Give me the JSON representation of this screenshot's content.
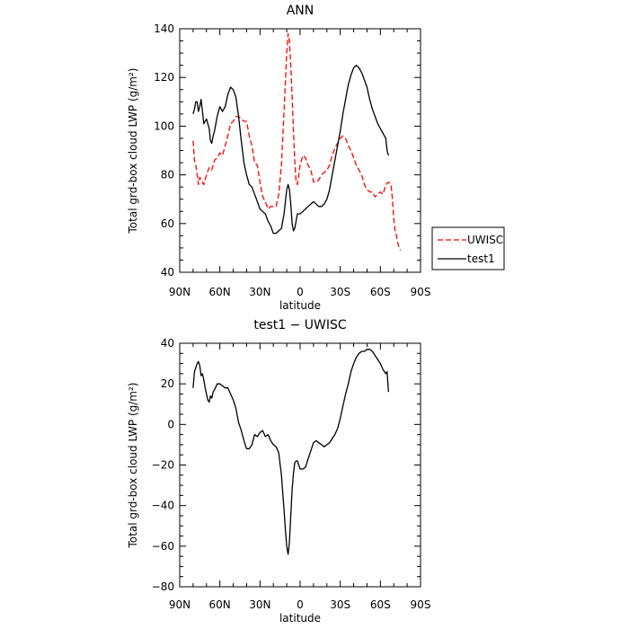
{
  "chart_data": [
    {
      "type": "line",
      "title": "ANN",
      "xlabel": "latitude",
      "ylabel": "Total grd-box cloud LWP (g/m²)",
      "xlim": [
        90,
        -90
      ],
      "ylim": [
        40,
        140
      ],
      "x_ticks": [
        90,
        60,
        30,
        0,
        -30,
        -60,
        -90
      ],
      "x_tick_labels": [
        "90N",
        "60N",
        "30N",
        "0",
        "30S",
        "60S",
        "90S"
      ],
      "y_ticks": [
        40,
        60,
        80,
        100,
        120,
        140
      ],
      "y_tick_labels": [
        "40",
        "60",
        "80",
        "100",
        "120",
        "140"
      ],
      "legend_position": "right",
      "series": [
        {
          "name": "UWISC",
          "color": "#ff0000",
          "dash": "dashed",
          "x": [
            80,
            79,
            78,
            77,
            76,
            75,
            74,
            73,
            72,
            70,
            68,
            66,
            64,
            62,
            60,
            58,
            56,
            54,
            52,
            50,
            48,
            46,
            44,
            42,
            40,
            38,
            36,
            34,
            32,
            30,
            28,
            26,
            24,
            22,
            20,
            18,
            16,
            14,
            12,
            11,
            10,
            9,
            8,
            7,
            6,
            5,
            4,
            3,
            2,
            1,
            0,
            -2,
            -4,
            -6,
            -8,
            -10,
            -12,
            -14,
            -16,
            -18,
            -20,
            -22,
            -24,
            -26,
            -28,
            -30,
            -32,
            -34,
            -36,
            -38,
            -40,
            -42,
            -44,
            -46,
            -48,
            -50,
            -52,
            -54,
            -56,
            -58,
            -60,
            -62,
            -64,
            -66,
            -68,
            -69,
            -70,
            -71,
            -72,
            -73,
            -74,
            -75
          ],
          "y": [
            94,
            86,
            84,
            80,
            76,
            79,
            78,
            77,
            76,
            80,
            83,
            82,
            86,
            87,
            89,
            88,
            92,
            96,
            101,
            102,
            104,
            104,
            103,
            102,
            102,
            96,
            92,
            85,
            84,
            77,
            71,
            69,
            66,
            67,
            67,
            67,
            72,
            84,
            106,
            118,
            130,
            138,
            135,
            125,
            112,
            98,
            86,
            77,
            76,
            80,
            84,
            88,
            87,
            84,
            82,
            77,
            77,
            78,
            80,
            81,
            82,
            84,
            88,
            91,
            93,
            95,
            96,
            95,
            92,
            90,
            87,
            84,
            82,
            80,
            76,
            74,
            73,
            73,
            71,
            72,
            73,
            72,
            76,
            77,
            76,
            70,
            62,
            57,
            55,
            52,
            50,
            49
          ]
        },
        {
          "name": "test1",
          "color": "#000000",
          "dash": "solid",
          "x": [
            80,
            79,
            78,
            77,
            76,
            75,
            74,
            73,
            72,
            70,
            68,
            67,
            66,
            65,
            64,
            62,
            60,
            58,
            56,
            54,
            52,
            50,
            48,
            46,
            44,
            42,
            40,
            38,
            36,
            34,
            32,
            30,
            28,
            26,
            24,
            22,
            20,
            18,
            16,
            14,
            12,
            11,
            10,
            9,
            8,
            7,
            6,
            5,
            4,
            3,
            2,
            1,
            0,
            -2,
            -4,
            -6,
            -8,
            -10,
            -12,
            -14,
            -16,
            -18,
            -20,
            -22,
            -24,
            -26,
            -28,
            -30,
            -32,
            -34,
            -36,
            -38,
            -40,
            -42,
            -44,
            -46,
            -48,
            -50,
            -52,
            -54,
            -56,
            -58,
            -60,
            -62,
            -64,
            -65,
            -66
          ],
          "y": [
            105,
            107,
            110,
            110,
            106,
            108,
            111,
            106,
            101,
            103,
            99,
            94,
            93,
            96,
            98,
            104,
            108,
            106,
            108,
            113,
            116,
            115,
            112,
            104,
            94,
            85,
            80,
            76,
            75,
            72,
            69,
            66,
            65,
            64,
            61,
            59,
            56,
            56,
            57,
            58,
            64,
            69,
            74,
            76,
            74,
            68,
            60,
            57,
            58,
            61,
            64,
            64,
            64,
            65,
            66,
            67,
            68,
            69,
            68,
            67,
            67,
            68,
            70,
            74,
            80,
            86,
            92,
            98,
            105,
            111,
            117,
            121,
            124,
            125,
            124,
            122,
            119,
            116,
            111,
            107,
            104,
            101,
            99,
            97,
            95,
            90,
            88
          ]
        }
      ]
    },
    {
      "type": "line",
      "title": "test1 − UWISC",
      "xlabel": "latitude",
      "ylabel": "Total grd-box cloud LWP (g/m²)",
      "xlim": [
        90,
        -90
      ],
      "ylim": [
        -80,
        40
      ],
      "x_ticks": [
        90,
        60,
        30,
        0,
        -30,
        -60,
        -90
      ],
      "x_tick_labels": [
        "90N",
        "60N",
        "30N",
        "0",
        "30S",
        "60S",
        "90S"
      ],
      "y_ticks": [
        -80,
        -60,
        -40,
        -20,
        0,
        20,
        40
      ],
      "y_tick_labels": [
        "−80",
        "−60",
        "−40",
        "−20",
        "0",
        "20",
        "40"
      ],
      "series": [
        {
          "color": "#000000",
          "dash": "solid",
          "x": [
            80,
            79,
            78,
            77,
            76,
            75,
            74,
            73,
            72,
            71,
            70,
            69,
            68,
            67,
            66,
            65,
            64,
            62,
            60,
            58,
            56,
            54,
            52,
            50,
            48,
            46,
            44,
            42,
            40,
            38,
            36,
            34,
            32,
            30,
            28,
            26,
            24,
            22,
            20,
            18,
            16,
            14,
            12,
            11,
            10,
            9,
            8,
            7,
            6,
            5,
            4,
            3,
            2,
            1,
            0,
            -2,
            -4,
            -6,
            -8,
            -10,
            -12,
            -14,
            -16,
            -18,
            -20,
            -22,
            -24,
            -26,
            -28,
            -30,
            -32,
            -34,
            -36,
            -38,
            -40,
            -42,
            -44,
            -46,
            -48,
            -50,
            -52,
            -54,
            -56,
            -58,
            -60,
            -62,
            -64,
            -65,
            -66
          ],
          "y": [
            18,
            26,
            28,
            30,
            31,
            29,
            24,
            25,
            22,
            18,
            15,
            12,
            11,
            14,
            13,
            16,
            17,
            20,
            20,
            19,
            18,
            18,
            15,
            12,
            8,
            1,
            -3,
            -8,
            -12,
            -12,
            -10,
            -5,
            -6,
            -4,
            -3,
            -6,
            -5,
            -8,
            -10,
            -11,
            -14,
            -25,
            -42,
            -52,
            -60,
            -64,
            -58,
            -45,
            -32,
            -24,
            -19,
            -18,
            -18,
            -20,
            -22,
            -22,
            -21,
            -17,
            -13,
            -9,
            -8,
            -9,
            -10,
            -11,
            -10,
            -9,
            -7,
            -5,
            -2,
            3,
            9,
            15,
            20,
            26,
            30,
            33,
            35,
            36,
            36,
            37,
            37,
            36,
            34,
            32,
            30,
            27,
            25,
            26,
            16
          ]
        }
      ]
    }
  ],
  "legend": {
    "entries": [
      {
        "label": "UWISC",
        "color": "#ff0000",
        "dash": "dashed"
      },
      {
        "label": "test1",
        "color": "#000000",
        "dash": "solid"
      }
    ]
  }
}
